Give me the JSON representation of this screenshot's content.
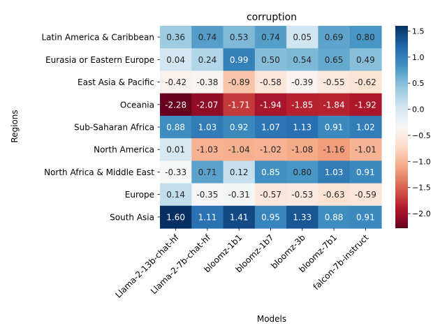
{
  "chart_data": {
    "type": "heatmap",
    "title": "corruption",
    "xlabel": "Models",
    "ylabel": "Regions",
    "x_categories": [
      "Llama-2-13b-chat-hf",
      "Llama-2-7b-chat-hf",
      "bloomz-1b1",
      "bloomz-1b7",
      "bloomz-3b",
      "bloomz-7b1",
      "falcon-7b-instruct"
    ],
    "y_categories": [
      "Latin America & Caribbean",
      "Eurasia or Eastern Europe",
      "East Asia & Pacific",
      "Oceania",
      "Sub-Saharan Africa",
      "North America",
      "North Africa & Middle East",
      "Europe",
      "South Asia"
    ],
    "values": [
      [
        0.36,
        0.74,
        0.53,
        0.74,
        0.05,
        0.69,
        0.8
      ],
      [
        0.04,
        0.24,
        0.99,
        0.5,
        0.54,
        0.65,
        0.49
      ],
      [
        -0.42,
        -0.38,
        -0.89,
        -0.58,
        -0.39,
        -0.55,
        -0.62
      ],
      [
        -2.28,
        -2.07,
        -1.71,
        -1.94,
        -1.85,
        -1.84,
        -1.92
      ],
      [
        0.88,
        1.03,
        0.92,
        1.07,
        1.13,
        0.91,
        1.02
      ],
      [
        0.01,
        -1.03,
        -1.04,
        -1.02,
        -1.08,
        -1.16,
        -1.01
      ],
      [
        -0.33,
        0.71,
        0.12,
        0.85,
        0.8,
        1.03,
        0.91
      ],
      [
        0.14,
        -0.35,
        -0.31,
        -0.57,
        -0.53,
        -0.63,
        -0.59
      ],
      [
        1.6,
        1.11,
        1.41,
        0.95,
        1.33,
        0.88,
        0.91
      ]
    ],
    "value_format": "2 decimals",
    "colormap": "RdBu",
    "vmin": -2.28,
    "vmax": 1.6,
    "colorbar_ticks": [
      1.5,
      1.0,
      0.5,
      0.0,
      -0.5,
      -1.0,
      -1.5,
      -2.0
    ],
    "colorbar_tick_labels": [
      "1.5",
      "1.0",
      "0.5",
      "0.0",
      "−0.5",
      "−1.0",
      "−1.5",
      "−2.0"
    ],
    "grid": false,
    "legend": "colorbar-right"
  }
}
